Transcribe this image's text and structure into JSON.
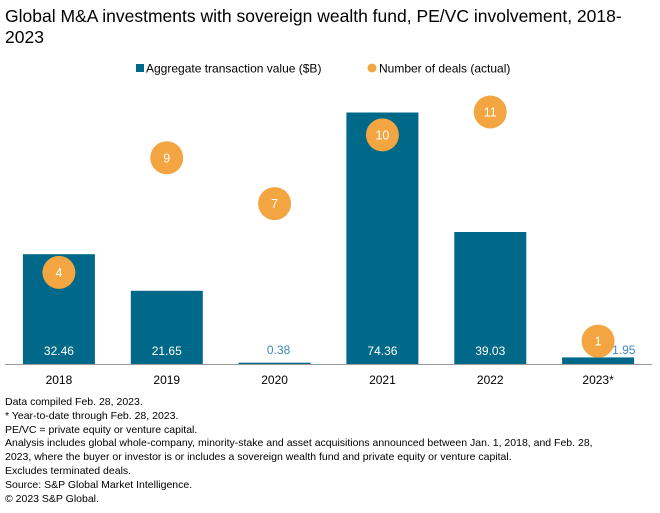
{
  "chart_data": {
    "type": "bar",
    "title": "Global M&A investments with sovereign wealth fund, PE/VC involvement, 2018-2023",
    "categories": [
      "2018",
      "2019",
      "2020",
      "2021",
      "2022",
      "2023*"
    ],
    "series": [
      {
        "name": "Aggregate transaction value ($B)",
        "type": "bar",
        "values": [
          32.46,
          21.65,
          0.38,
          74.36,
          39.03,
          1.95
        ],
        "labels": [
          "32.46",
          "21.65",
          "0.38",
          "74.36",
          "39.03",
          "1.95"
        ]
      },
      {
        "name": "Number of deals (actual)",
        "type": "scatter",
        "values": [
          4,
          9,
          7,
          10,
          11,
          1
        ],
        "labels": [
          "4",
          "9",
          "7",
          "10",
          "11",
          "1"
        ]
      }
    ],
    "ylim": [
      0,
      76
    ],
    "y2lim": [
      0,
      12
    ],
    "legend_position": "top-center",
    "xlabel": "",
    "ylabel": ""
  },
  "colors": {
    "bar": "#006888",
    "dot": "#f2a541",
    "label_outside": "#3f88c5",
    "text": "#000000"
  },
  "notes": [
    "Data compiled Feb. 28, 2023.",
    "* Year-to-date through Feb. 28, 2023.",
    "PE/VC = private equity or venture capital.",
    "Analysis includes global whole-company, minority-stake and asset acquisitions announced between Jan. 1, 2018, and Feb. 28,",
    "2023, where the buyer or investor is or includes a sovereign wealth fund and private equity or venture capital.",
    "Excludes terminated deals.",
    "Source: S&P Global Market Intelligence.",
    "© 2023 S&P Global."
  ]
}
